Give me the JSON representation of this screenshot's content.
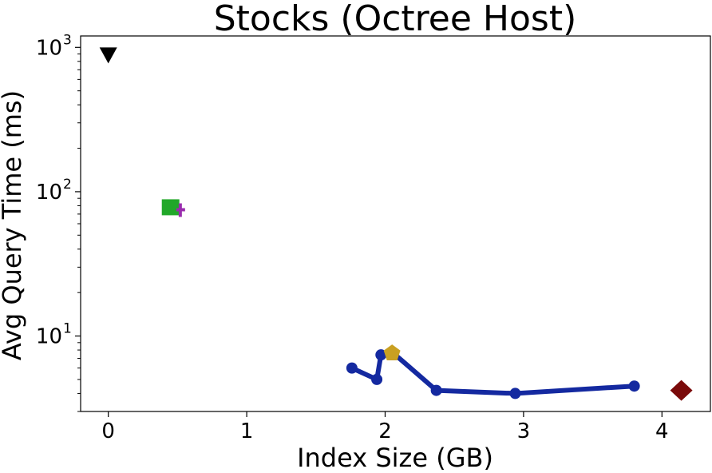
{
  "chart_data": {
    "type": "scatter",
    "title": "Stocks (Octree Host)",
    "xlabel": "Index Size (GB)",
    "ylabel": "Avg Query Time (ms)",
    "xlim": [
      -0.2,
      4.35
    ],
    "ylim": [
      3.0,
      1200
    ],
    "yscale": "log",
    "grid": false,
    "x_ticks": [
      {
        "value": 0,
        "label": "0"
      },
      {
        "value": 1,
        "label": "1"
      },
      {
        "value": 2,
        "label": "2"
      },
      {
        "value": 3,
        "label": "3"
      },
      {
        "value": 4,
        "label": "4"
      }
    ],
    "y_ticks": [
      {
        "value": 10,
        "base": "10",
        "exp": "1"
      },
      {
        "value": 100,
        "base": "10",
        "exp": "2"
      },
      {
        "value": 1000,
        "base": "10",
        "exp": "3"
      }
    ],
    "series": [
      {
        "marker": "circle-line",
        "color": "#1429a0",
        "points": [
          {
            "x": 1.76,
            "y": 6.0
          },
          {
            "x": 1.94,
            "y": 5.0
          },
          {
            "x": 1.97,
            "y": 7.4
          },
          {
            "x": 2.06,
            "y": 7.6
          },
          {
            "x": 2.37,
            "y": 4.2
          },
          {
            "x": 2.94,
            "y": 4.0
          },
          {
            "x": 3.8,
            "y": 4.5
          }
        ]
      },
      {
        "marker": "triangle-down",
        "color": "#000000",
        "points": [
          {
            "x": 0.0,
            "y": 880
          }
        ]
      },
      {
        "marker": "square",
        "color": "#21a829",
        "points": [
          {
            "x": 0.45,
            "y": 78
          }
        ]
      },
      {
        "marker": "plus",
        "color": "#9a2cae",
        "points": [
          {
            "x": 0.52,
            "y": 75
          }
        ]
      },
      {
        "marker": "pentagon",
        "color": "#c9a022",
        "points": [
          {
            "x": 2.05,
            "y": 7.6
          }
        ]
      },
      {
        "marker": "diamond",
        "color": "#7a0a0a",
        "points": [
          {
            "x": 4.14,
            "y": 4.2
          }
        ]
      }
    ]
  }
}
